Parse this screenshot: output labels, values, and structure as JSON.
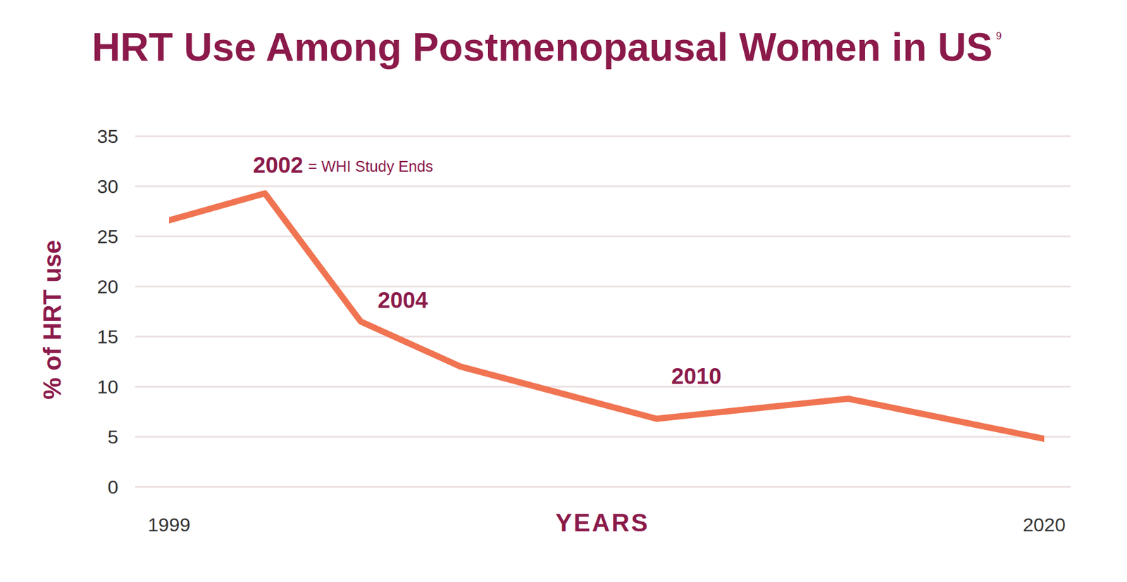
{
  "chart_data": {
    "type": "line",
    "title": "HRT Use Among Postmenopausal Women in US",
    "title_superscript": "9",
    "x_label": "YEARS",
    "y_label": "% of HRT use",
    "x": [
      1999,
      2001.3,
      2003.6,
      2006,
      2010.7,
      2015.3,
      2020
    ],
    "values": [
      26.6,
      29.3,
      16.5,
      12,
      6.8,
      8.8,
      4.8
    ],
    "color": "#f07451",
    "xlim": [
      1999,
      2020
    ],
    "xticks": [
      1999,
      2020
    ],
    "ylim": [
      0,
      35
    ],
    "yticks": [
      0,
      5,
      10,
      15,
      20,
      25,
      30,
      35
    ],
    "grid": true,
    "annotations": [
      {
        "text": "2002",
        "note": "= WHI Study Ends"
      },
      {
        "text": "2004"
      },
      {
        "text": "2010"
      }
    ]
  }
}
